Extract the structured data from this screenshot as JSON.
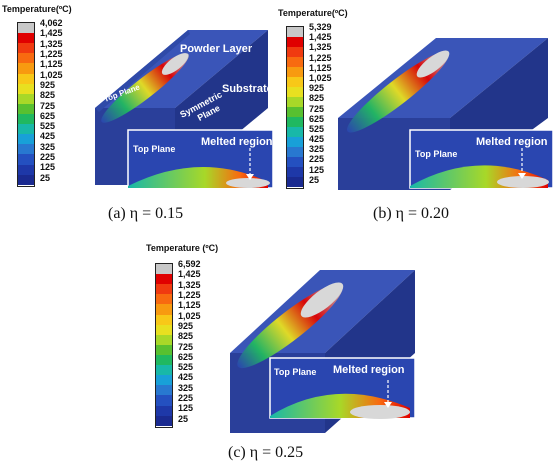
{
  "panels": [
    {
      "id": "a",
      "legend_title": "Temperature(ºC)",
      "legend_labels": [
        "4,062",
        "1,425",
        "1,325",
        "1,225",
        "1,125",
        "1,025",
        "925",
        "825",
        "725",
        "625",
        "525",
        "425",
        "325",
        "225",
        "125",
        "25"
      ],
      "caption": "(a) η = 0.15",
      "annotations": {
        "powder_layer": "Powder Layer",
        "substrate": "Substrate",
        "top_plane": "Top Plane",
        "symmetric_plane": "Symmetric Plane",
        "inset_top_plane": "Top Plane",
        "melted_region": "Melted region"
      }
    },
    {
      "id": "b",
      "legend_title": "Temperature(ºC)",
      "legend_labels": [
        "5,329",
        "1,425",
        "1,325",
        "1,225",
        "1,125",
        "1,025",
        "925",
        "825",
        "725",
        "625",
        "525",
        "425",
        "325",
        "225",
        "125",
        "25"
      ],
      "caption": "(b) η = 0.20",
      "annotations": {
        "inset_top_plane": "Top Plane",
        "melted_region": "Melted region"
      }
    },
    {
      "id": "c",
      "legend_title": "Temperature (ºC)",
      "legend_labels": [
        "6,592",
        "1,425",
        "1,325",
        "1,225",
        "1,125",
        "1,025",
        "925",
        "825",
        "725",
        "625",
        "525",
        "425",
        "325",
        "225",
        "125",
        "25"
      ],
      "caption": "(c) η = 0.25",
      "annotations": {
        "inset_top_plane": "Top Plane",
        "melted_region": "Melted region"
      }
    }
  ],
  "colors": {
    "legend": [
      "#c8c8c8",
      "#e00000",
      "#f03a10",
      "#f86a10",
      "#f89a10",
      "#f8c818",
      "#e8e020",
      "#a8d828",
      "#58c030",
      "#20b860",
      "#18b8a8",
      "#18a0d8",
      "#2878d0",
      "#2450c0",
      "#1e38a8",
      "#1a2a90"
    ],
    "substrate_top": "#3a55b8",
    "substrate_front": "#2a3f9a",
    "substrate_side": "#22358a"
  }
}
